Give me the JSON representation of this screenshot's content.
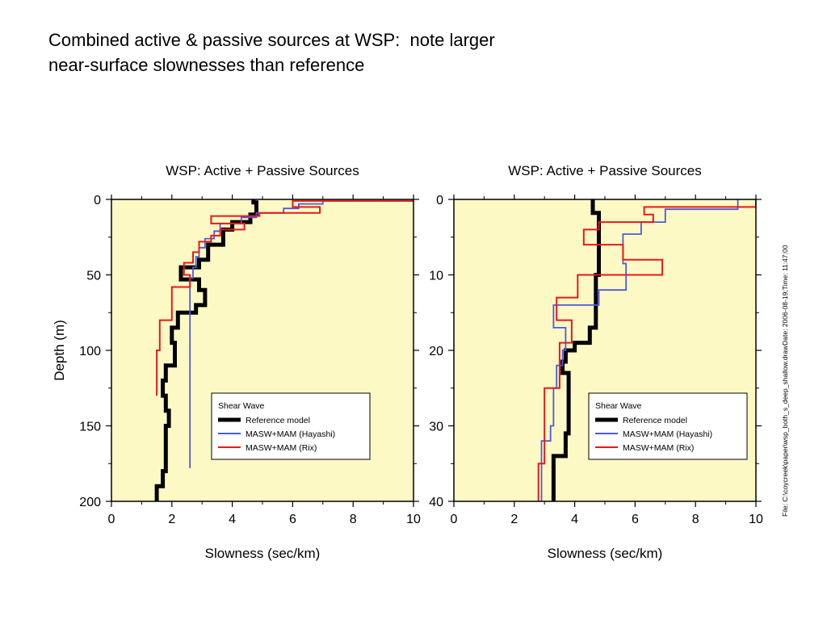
{
  "slide": {
    "title_line1": "Combined active & passive sources at WSP:  note larger",
    "title_line2": "near-surface slownesses than reference",
    "file_note": "File: C:\\coycreek\\paper\\wsp_both_s_deep_shallow.drawDate: 2006-08-19;Time: 11:47:00"
  },
  "colors": {
    "plot_background": "#fdf9c4",
    "reference": "#000000",
    "hayashi": "#4a5ae0",
    "rix": "#e41a1c"
  },
  "chart_data": [
    {
      "type": "line",
      "title": "WSP: Active + Passive  Sources",
      "xlabel": "Slowness  (sec/km)",
      "ylabel": "Depth (m)",
      "xlim": [
        0,
        10
      ],
      "ylim": [
        200,
        0
      ],
      "xticks": [
        "0",
        "2",
        "4",
        "6",
        "8",
        "10"
      ],
      "yticks": [
        "0",
        "50",
        "100",
        "150",
        "200"
      ],
      "grid": false,
      "legend": {
        "title": "Shear   Wave",
        "placement": "lower-right",
        "entries": [
          "Reference    model",
          "MASW+MAM      (Hayashi)",
          "MASW+MAM      (Rix)"
        ]
      },
      "series": [
        {
          "name": "Reference    model",
          "color_key": "reference",
          "step_points": [
            [
              4.7,
              0
            ],
            [
              4.7,
              2
            ],
            [
              4.8,
              2
            ],
            [
              4.8,
              10
            ],
            [
              4.6,
              10
            ],
            [
              4.6,
              15
            ],
            [
              4.0,
              15
            ],
            [
              4.0,
              20
            ],
            [
              3.7,
              20
            ],
            [
              3.7,
              30
            ],
            [
              3.2,
              30
            ],
            [
              3.2,
              40
            ],
            [
              2.9,
              40
            ],
            [
              2.9,
              45
            ],
            [
              2.3,
              45
            ],
            [
              2.3,
              53
            ],
            [
              2.9,
              53
            ],
            [
              2.9,
              60
            ],
            [
              3.1,
              60
            ],
            [
              3.1,
              70
            ],
            [
              2.8,
              70
            ],
            [
              2.8,
              75
            ],
            [
              2.2,
              75
            ],
            [
              2.2,
              85
            ],
            [
              2.0,
              85
            ],
            [
              2.0,
              95
            ],
            [
              2.1,
              95
            ],
            [
              2.1,
              110
            ],
            [
              1.8,
              110
            ],
            [
              1.8,
              120
            ],
            [
              1.7,
              120
            ],
            [
              1.7,
              130
            ],
            [
              1.8,
              130
            ],
            [
              1.8,
              140
            ],
            [
              1.9,
              140
            ],
            [
              1.9,
              150
            ],
            [
              1.8,
              150
            ],
            [
              1.8,
              165
            ],
            [
              1.8,
              165
            ],
            [
              1.8,
              180
            ],
            [
              1.7,
              180
            ],
            [
              1.7,
              190
            ],
            [
              1.5,
              190
            ],
            [
              1.5,
              200
            ]
          ]
        },
        {
          "name": "MASW+MAM      (Hayashi)",
          "color_key": "hayashi",
          "step_points": [
            [
              10.0,
              0
            ],
            [
              10.0,
              1
            ],
            [
              7.0,
              1
            ],
            [
              7.0,
              3
            ],
            [
              6.2,
              3
            ],
            [
              6.2,
              6
            ],
            [
              5.7,
              6
            ],
            [
              5.7,
              9
            ],
            [
              4.8,
              9
            ],
            [
              4.8,
              12
            ],
            [
              4.3,
              12
            ],
            [
              4.3,
              16
            ],
            [
              3.6,
              16
            ],
            [
              3.6,
              21
            ],
            [
              3.4,
              21
            ],
            [
              3.4,
              26
            ],
            [
              3.1,
              26
            ],
            [
              3.1,
              32
            ],
            [
              2.9,
              32
            ],
            [
              2.9,
              38
            ],
            [
              2.8,
              38
            ],
            [
              2.8,
              45
            ],
            [
              2.7,
              45
            ],
            [
              2.7,
              52
            ],
            [
              2.6,
              52
            ],
            [
              2.6,
              60
            ],
            [
              2.6,
              178
            ]
          ]
        },
        {
          "name": "MASW+MAM      (Rix)",
          "color_key": "rix",
          "step_points": [
            [
              10.0,
              0
            ],
            [
              10.0,
              1
            ],
            [
              6.0,
              1
            ],
            [
              6.0,
              5
            ],
            [
              6.9,
              5
            ],
            [
              6.9,
              9
            ],
            [
              4.9,
              9
            ],
            [
              4.9,
              11
            ],
            [
              3.3,
              11
            ],
            [
              3.3,
              16
            ],
            [
              4.4,
              16
            ],
            [
              4.4,
              20
            ],
            [
              3.6,
              20
            ],
            [
              3.6,
              24
            ],
            [
              3.3,
              24
            ],
            [
              3.3,
              28
            ],
            [
              2.9,
              28
            ],
            [
              2.9,
              35
            ],
            [
              2.7,
              35
            ],
            [
              2.7,
              42
            ],
            [
              2.4,
              42
            ],
            [
              2.4,
              50
            ],
            [
              2.6,
              50
            ],
            [
              2.6,
              58
            ],
            [
              2.0,
              58
            ],
            [
              2.0,
              80
            ],
            [
              1.6,
              80
            ],
            [
              1.6,
              100
            ],
            [
              1.5,
              100
            ],
            [
              1.5,
              130
            ]
          ]
        }
      ]
    },
    {
      "type": "line",
      "title": "WSP: Active + Passive  Sources",
      "xlabel": "Slowness  (sec/km)",
      "ylabel": "",
      "xlim": [
        0,
        10
      ],
      "ylim": [
        40,
        0
      ],
      "xticks": [
        "0",
        "2",
        "4",
        "6",
        "8",
        "10"
      ],
      "yticks": [
        "0",
        "10",
        "20",
        "30",
        "40"
      ],
      "grid": false,
      "legend": {
        "title": "Shear   Wave",
        "placement": "lower-right",
        "entries": [
          "Reference    model",
          "MASW+MAM      (Hayashi)",
          "MASW+MAM      (Rix)"
        ]
      },
      "series": [
        {
          "name": "Reference    model",
          "color_key": "reference",
          "step_points": [
            [
              4.6,
              0
            ],
            [
              4.6,
              1.8
            ],
            [
              4.8,
              1.8
            ],
            [
              4.8,
              10
            ],
            [
              4.7,
              10
            ],
            [
              4.7,
              17
            ],
            [
              4.5,
              17
            ],
            [
              4.5,
              19
            ],
            [
              4.0,
              19
            ],
            [
              4.0,
              20
            ],
            [
              3.7,
              20
            ],
            [
              3.7,
              21.5
            ],
            [
              3.6,
              21.5
            ],
            [
              3.6,
              23
            ],
            [
              3.8,
              23
            ],
            [
              3.8,
              31
            ],
            [
              3.7,
              31
            ],
            [
              3.7,
              34
            ],
            [
              3.3,
              34
            ],
            [
              3.3,
              40
            ]
          ]
        },
        {
          "name": "MASW+MAM      (Hayashi)",
          "color_key": "hayashi",
          "step_points": [
            [
              9.4,
              0
            ],
            [
              9.4,
              1.3
            ],
            [
              7.0,
              1.3
            ],
            [
              7.0,
              3.0
            ],
            [
              6.2,
              3.0
            ],
            [
              6.2,
              4.6
            ],
            [
              5.6,
              4.6
            ],
            [
              5.6,
              8.5
            ],
            [
              5.7,
              8.5
            ],
            [
              5.7,
              12
            ],
            [
              4.8,
              12
            ],
            [
              4.8,
              14
            ],
            [
              3.3,
              14
            ],
            [
              3.3,
              17
            ],
            [
              3.7,
              17
            ],
            [
              3.7,
              20
            ],
            [
              3.6,
              20
            ],
            [
              3.6,
              22
            ],
            [
              3.4,
              22
            ],
            [
              3.4,
              25
            ],
            [
              3.3,
              25
            ],
            [
              3.3,
              30
            ],
            [
              3.2,
              30
            ],
            [
              3.2,
              32
            ],
            [
              2.9,
              32
            ],
            [
              2.9,
              40
            ]
          ]
        },
        {
          "name": "MASW+MAM      (Rix)",
          "color_key": "rix",
          "step_points": [
            [
              10.0,
              0
            ],
            [
              10.0,
              1
            ],
            [
              6.3,
              1
            ],
            [
              6.3,
              2
            ],
            [
              6.6,
              2
            ],
            [
              6.6,
              3
            ],
            [
              4.8,
              3
            ],
            [
              4.8,
              4
            ],
            [
              4.3,
              4
            ],
            [
              4.3,
              6
            ],
            [
              5.6,
              6
            ],
            [
              5.6,
              8
            ],
            [
              6.9,
              8
            ],
            [
              6.9,
              10
            ],
            [
              4.1,
              10
            ],
            [
              4.1,
              13
            ],
            [
              3.4,
              13
            ],
            [
              3.4,
              16
            ],
            [
              3.9,
              16
            ],
            [
              3.9,
              19
            ],
            [
              3.5,
              19
            ],
            [
              3.5,
              25
            ],
            [
              3.0,
              25
            ],
            [
              3.0,
              35
            ],
            [
              2.8,
              35
            ],
            [
              2.8,
              40
            ]
          ]
        }
      ]
    }
  ]
}
